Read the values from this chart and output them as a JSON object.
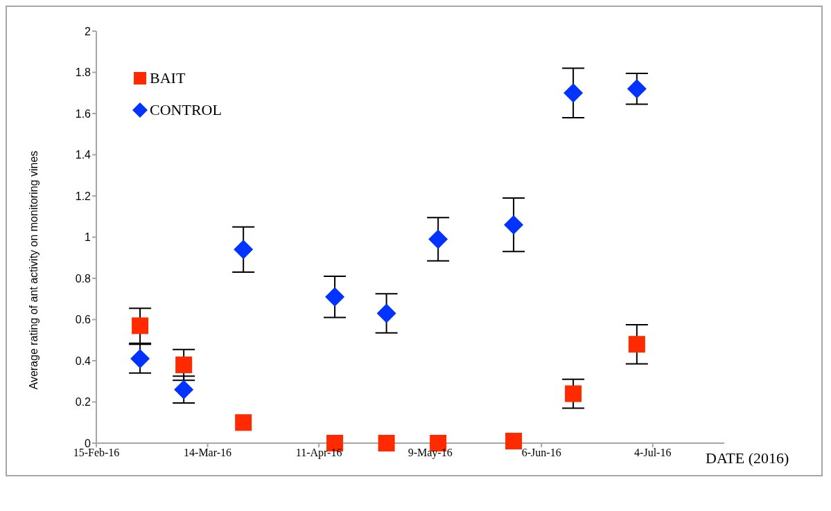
{
  "chart_data": {
    "type": "scatter",
    "ylabel": "Average rating of ant activity on monitoring vines",
    "xlabel": "DATE (2016)",
    "x": [
      "2016-02-26",
      "2016-03-08",
      "2016-03-23",
      "2016-04-15",
      "2016-04-28",
      "2016-05-11",
      "2016-05-30",
      "2016-06-14",
      "2016-06-30"
    ],
    "series": [
      {
        "name": "BAIT",
        "color": "#ff2a00",
        "marker": "square",
        "values": [
          0.57,
          0.38,
          0.1,
          0,
          0,
          0,
          0.01,
          0.24,
          0.48
        ],
        "errors": [
          0.085,
          0.075,
          null,
          null,
          null,
          null,
          null,
          0.07,
          0.095
        ]
      },
      {
        "name": "CONTROL",
        "color": "#0033ff",
        "marker": "diamond",
        "values": [
          0.41,
          0.26,
          0.94,
          0.71,
          0.63,
          0.99,
          1.06,
          1.7,
          1.72
        ],
        "errors": [
          0.07,
          0.065,
          0.11,
          0.1,
          0.095,
          0.105,
          0.13,
          0.12,
          0.075
        ]
      }
    ],
    "xlim": [
      "2016-02-15",
      "2016-07-22"
    ],
    "xticks": [
      {
        "value": "2016-02-15",
        "label": "15-Feb-16"
      },
      {
        "value": "2016-03-14",
        "label": "14-Mar-16"
      },
      {
        "value": "2016-04-11",
        "label": "11-Apr-16"
      },
      {
        "value": "2016-05-09",
        "label": "9-May-16"
      },
      {
        "value": "2016-06-06",
        "label": "6-Jun-16"
      },
      {
        "value": "2016-07-04",
        "label": "4-Jul-16"
      }
    ],
    "ylim": [
      0,
      2
    ],
    "yticks": [
      0,
      0.2,
      0.4,
      0.6,
      0.8,
      1,
      1.2,
      1.4,
      1.6,
      1.8,
      2
    ],
    "legend": "top left"
  }
}
